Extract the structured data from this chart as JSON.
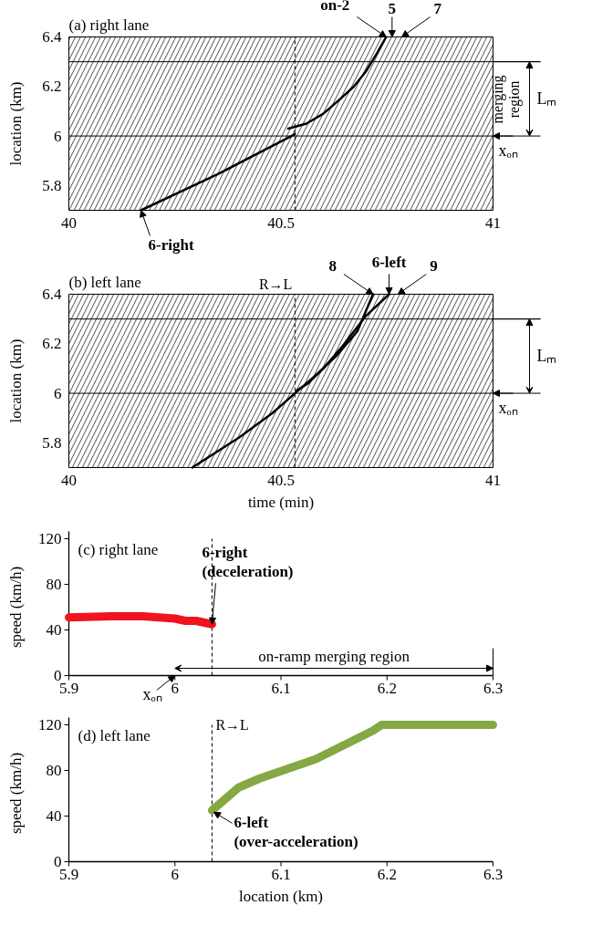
{
  "chart_data": [
    {
      "type": "line",
      "title": "(a) right lane",
      "ylabel": "location (km)",
      "xlim": [
        40,
        41
      ],
      "xticks": [
        40,
        40.5,
        41
      ],
      "ylim": [
        5.7,
        6.4
      ],
      "yticks": [
        5.8,
        6,
        6.2,
        6.4
      ],
      "bands": [
        {
          "axis": "y",
          "from": 5.7,
          "to": 6.0,
          "color": "#000000"
        },
        {
          "axis": "y",
          "from": 6.0,
          "to": 6.3,
          "color": "#000000",
          "label": "Lₘ"
        },
        {
          "axis": "y",
          "from": 6.3,
          "to": 6.4,
          "color": "#000000"
        }
      ],
      "ref_lines": [
        {
          "axis": "y",
          "value": 6.0
        },
        {
          "axis": "y",
          "value": 6.3
        },
        {
          "axis": "x",
          "value": 40.533,
          "line_style": "dashed"
        }
      ],
      "series": [
        {
          "color": "#000000",
          "x": [
            40.17,
            40.35,
            40.533
          ],
          "values": [
            5.7,
            5.845,
            6.007
          ]
        },
        {
          "color": "#000000",
          "x": [
            40.517,
            40.56,
            40.6,
            40.64,
            40.672,
            40.7,
            40.726,
            40.748
          ],
          "values": [
            6.03,
            6.05,
            6.09,
            6.15,
            6.2,
            6.26,
            6.333,
            6.4
          ]
        }
      ],
      "annotations": [
        {
          "text": "on-2",
          "x": 40.748,
          "y": 6.4
        },
        {
          "text": "5",
          "x": 40.762,
          "y": 6.4
        },
        {
          "text": "7",
          "x": 40.785,
          "y": 6.4
        },
        {
          "text": "6-right",
          "x": 40.17,
          "y": 5.7
        },
        {
          "text": "xₒₙ",
          "x": 41,
          "y": 6.0
        },
        "merging region"
      ]
    },
    {
      "type": "line",
      "title": "(b) left lane",
      "xlabel": "time (min)",
      "ylabel": "location (km)",
      "xlim": [
        40,
        41
      ],
      "xticks": [
        40,
        40.5,
        41
      ],
      "ylim": [
        5.7,
        6.4
      ],
      "yticks": [
        5.8,
        6,
        6.2,
        6.4
      ],
      "bands": [
        {
          "axis": "y",
          "from": 5.7,
          "to": 6.0,
          "color": "#000000"
        },
        {
          "axis": "y",
          "from": 6.0,
          "to": 6.3,
          "color": "#000000",
          "label": "Lₘ"
        },
        {
          "axis": "y",
          "from": 6.3,
          "to": 6.4,
          "color": "#000000"
        }
      ],
      "ref_lines": [
        {
          "axis": "y",
          "value": 6.0
        },
        {
          "axis": "y",
          "value": 6.3
        },
        {
          "axis": "x",
          "value": 40.533,
          "line_style": "dashed",
          "label": "R→L"
        }
      ],
      "series": [
        {
          "color": "#000000",
          "x": [
            40.291,
            40.4,
            40.48,
            40.533,
            40.58,
            40.63,
            40.68,
            40.717
          ],
          "values": [
            5.7,
            5.82,
            5.92,
            6.0,
            6.07,
            6.15,
            6.25,
            6.4
          ]
        },
        {
          "color": "#000000",
          "x": [
            40.536,
            40.564,
            40.6,
            40.645,
            40.699,
            40.755
          ],
          "values": [
            6.01,
            6.04,
            6.1,
            6.19,
            6.31,
            6.4
          ]
        }
      ],
      "annotations": [
        {
          "text": "8",
          "x": 40.717,
          "y": 6.4
        },
        {
          "text": "6-left",
          "x": 40.755,
          "y": 6.4
        },
        {
          "text": "9",
          "x": 40.776,
          "y": 6.4
        },
        {
          "text": "xₒₙ",
          "x": 41,
          "y": 6.0
        }
      ]
    },
    {
      "type": "line",
      "title": "(c) right lane",
      "ylabel": "speed (km/h)",
      "xlim": [
        5.9,
        6.3
      ],
      "xticks": [
        5.9,
        6,
        6.1,
        6.2,
        6.3
      ],
      "ylim": [
        0,
        120
      ],
      "yticks": [
        0,
        40,
        80,
        120
      ],
      "ref_lines": [
        {
          "axis": "x",
          "value": 6.035,
          "line_style": "dashed"
        }
      ],
      "series": [
        {
          "color": "#f0141e",
          "x": [
            5.9,
            5.94,
            5.97,
            6.0,
            6.01,
            6.02,
            6.03,
            6.035
          ],
          "values": [
            51,
            52,
            52,
            50,
            48,
            48,
            46,
            45
          ]
        }
      ],
      "annotations": [
        {
          "text": "6-right\n(deceleration)",
          "x": 6.035,
          "y": 45
        },
        "on-ramp merging region",
        "xₒₙ"
      ]
    },
    {
      "type": "line",
      "title": "(d) left lane",
      "xlabel": "location (km)",
      "ylabel": "speed (km/h)",
      "xlim": [
        5.9,
        6.3
      ],
      "xticks": [
        5.9,
        6,
        6.1,
        6.2,
        6.3
      ],
      "ylim": [
        0,
        120
      ],
      "yticks": [
        0,
        40,
        80,
        120
      ],
      "ref_lines": [
        {
          "axis": "x",
          "value": 6.035,
          "line_style": "dashed",
          "label": "R→L"
        }
      ],
      "series": [
        {
          "color": "#84a843",
          "x": [
            6.035,
            6.06,
            6.08,
            6.133,
            6.187,
            6.195,
            6.3
          ],
          "values": [
            45,
            65,
            73,
            90,
            115,
            120,
            120
          ]
        }
      ],
      "annotations": [
        {
          "text": "6-left\n(over-acceleration)",
          "x": 6.035,
          "y": 45
        }
      ]
    }
  ]
}
